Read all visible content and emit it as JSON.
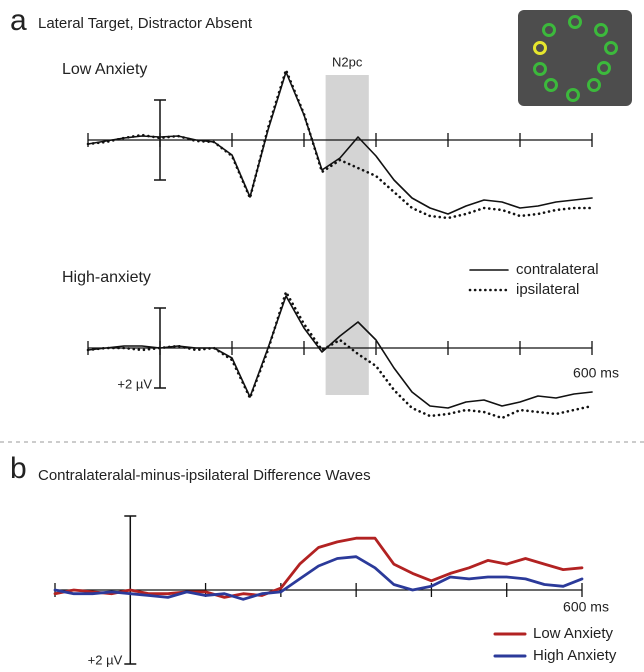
{
  "panels": [
    {
      "letter": "a",
      "title": "Lateral Target, Distractor Absent",
      "shade": {
        "label": "N2pc",
        "x": [
          230,
          290
        ]
      }
    },
    {
      "letter": "b",
      "title": "Contralateralal-minus-ipsilateral Difference Waves"
    }
  ],
  "chart_data": [
    {
      "type": "line",
      "title": "Low Anxiety",
      "y_inverted": true,
      "xlim": [
        -100,
        600
      ],
      "ylim": [
        -4,
        4
      ],
      "xticks": [
        -100,
        0,
        100,
        200,
        300,
        400,
        500,
        600
      ],
      "scale_bar": 2,
      "x": [
        -100,
        -75,
        -50,
        -25,
        0,
        25,
        50,
        75,
        100,
        125,
        150,
        175,
        200,
        225,
        250,
        275,
        300,
        325,
        350,
        375,
        400,
        425,
        450,
        475,
        500,
        525,
        550,
        575,
        600
      ],
      "series": [
        {
          "color": "#111111",
          "style": "solid",
          "values": [
            0.2,
            0.05,
            -0.1,
            -0.2,
            -0.15,
            -0.2,
            0,
            0.1,
            0.75,
            2.85,
            -0.5,
            -3.4,
            -1.25,
            1.5,
            0.9,
            -0.15,
            0.8,
            2.0,
            2.9,
            3.4,
            3.7,
            3.3,
            3.0,
            3.1,
            3.4,
            3.3,
            3.1,
            3.0,
            2.9
          ]
        },
        {
          "color": "#111111",
          "style": "dotted",
          "values": [
            0.2,
            0.1,
            -0.1,
            -0.25,
            -0.1,
            -0.2,
            0.05,
            0.1,
            0.8,
            2.9,
            -0.6,
            -3.5,
            -1.3,
            1.6,
            1.0,
            1.4,
            1.8,
            2.6,
            3.4,
            3.8,
            3.9,
            3.7,
            3.4,
            3.5,
            3.8,
            3.7,
            3.5,
            3.4,
            3.4
          ]
        }
      ]
    },
    {
      "type": "line",
      "title": "High-anxiety",
      "y_inverted": true,
      "xlim": [
        -100,
        600
      ],
      "ylim": [
        -4,
        4
      ],
      "xticks": [
        -100,
        0,
        100,
        200,
        300,
        400,
        500,
        {
          "value": 600,
          "label": "600 ms"
        }
      ],
      "scale_bar": {
        "value": 2,
        "label": "+2 µV"
      },
      "x": [
        -100,
        -75,
        -50,
        -25,
        0,
        25,
        50,
        75,
        100,
        125,
        150,
        175,
        200,
        225,
        250,
        275,
        300,
        325,
        350,
        375,
        400,
        425,
        450,
        475,
        500,
        525,
        550,
        575,
        600
      ],
      "series": [
        {
          "name": "contralateral",
          "color": "#111111",
          "style": "solid",
          "values": [
            0.1,
            0,
            -0.1,
            -0.1,
            0,
            -0.1,
            0,
            0,
            0.5,
            2.45,
            0.0,
            -2.6,
            -1.0,
            0.2,
            -0.6,
            -1.3,
            -0.4,
            1.0,
            2.2,
            2.9,
            3.0,
            2.7,
            2.6,
            2.9,
            2.7,
            2.4,
            2.5,
            2.3,
            2.2
          ]
        },
        {
          "name": "ipsilateral",
          "color": "#111111",
          "style": "dotted",
          "values": [
            0.1,
            0,
            0,
            0.1,
            0,
            -0.1,
            0.1,
            0,
            0.6,
            2.5,
            0.1,
            -2.8,
            -1.2,
            0.1,
            -0.4,
            0.3,
            0.9,
            2.1,
            3.0,
            3.4,
            3.3,
            3.1,
            3.2,
            3.5,
            3.1,
            3.2,
            3.3,
            3.1,
            2.9
          ]
        }
      ]
    },
    {
      "type": "line",
      "y_inverted": true,
      "xlim": [
        -100,
        600
      ],
      "ylim": [
        -2,
        2
      ],
      "xticks": [
        -100,
        0,
        100,
        200,
        300,
        400,
        500,
        {
          "value": 600,
          "label": "600 ms"
        }
      ],
      "scale_bar": {
        "value": 2,
        "label": "+2 µV"
      },
      "x": [
        -100,
        -75,
        -50,
        -25,
        0,
        25,
        50,
        75,
        100,
        125,
        150,
        175,
        200,
        225,
        250,
        275,
        300,
        325,
        350,
        375,
        400,
        425,
        450,
        475,
        500,
        525,
        550,
        575,
        600
      ],
      "series": [
        {
          "name": "Low Anxiety",
          "color": "#b22222",
          "style": "solid",
          "values": [
            0.1,
            0,
            0.05,
            0.1,
            0,
            0.1,
            0.1,
            0.05,
            0.05,
            0.2,
            0.1,
            0.15,
            -0.05,
            -0.7,
            -1.15,
            -1.3,
            -1.4,
            -1.4,
            -0.7,
            -0.45,
            -0.25,
            -0.45,
            -0.6,
            -0.8,
            -0.7,
            -0.85,
            -0.7,
            -0.55,
            -0.6
          ]
        },
        {
          "name": "High Anxiety",
          "color": "#2b3a9a",
          "style": "solid",
          "values": [
            0,
            0.1,
            0.1,
            0.05,
            0.1,
            0.15,
            0.2,
            0.05,
            0.15,
            0.1,
            0.25,
            0.1,
            0.05,
            -0.3,
            -0.65,
            -0.85,
            -0.9,
            -0.6,
            -0.15,
            0,
            -0.1,
            -0.35,
            -0.3,
            -0.35,
            -0.35,
            -0.3,
            -0.15,
            -0.1,
            -0.3
          ]
        }
      ]
    }
  ]
}
